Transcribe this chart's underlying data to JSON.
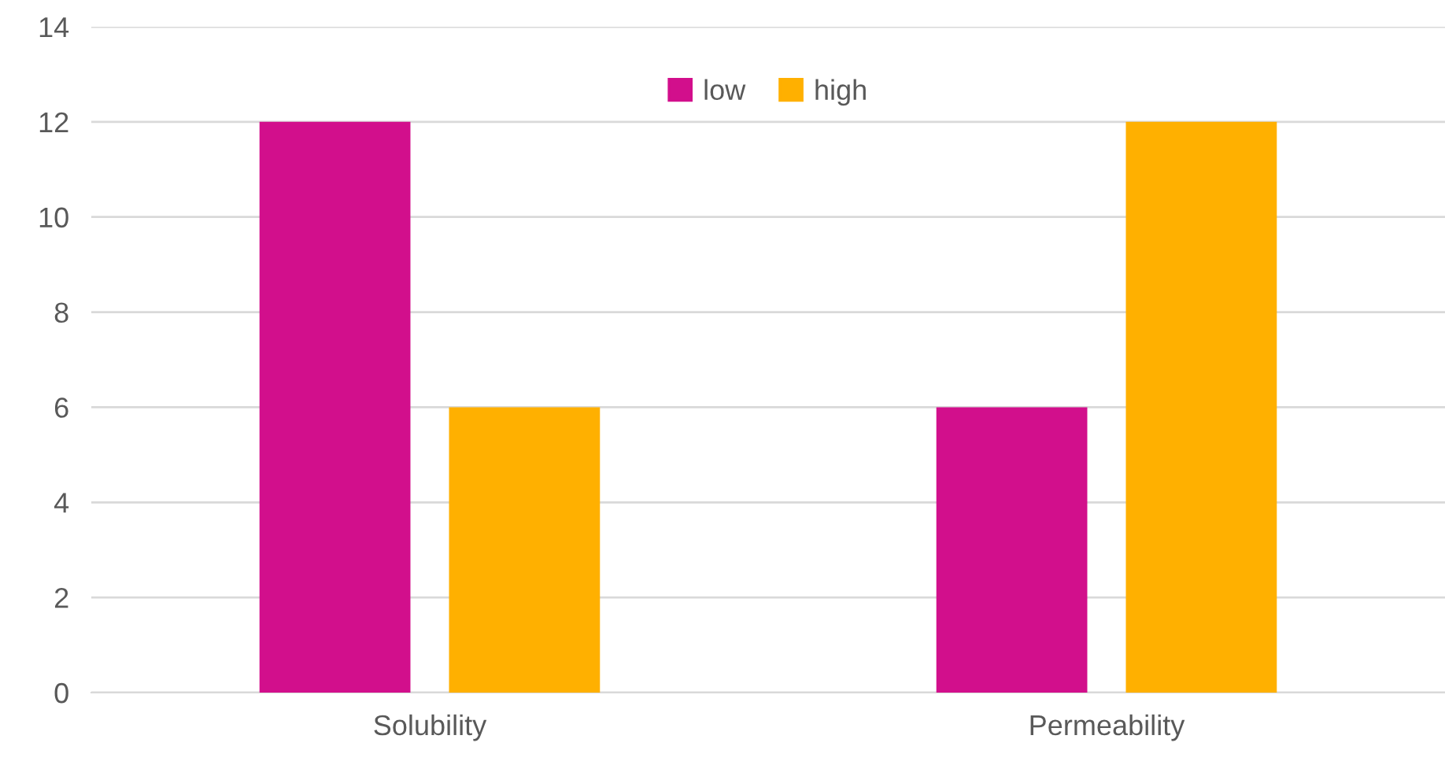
{
  "chart_data": {
    "type": "bar",
    "categories": [
      "Solubility",
      "Permeability"
    ],
    "series": [
      {
        "name": "low",
        "color": "#d20f8c",
        "values": [
          12,
          6
        ]
      },
      {
        "name": "high",
        "color": "#ffb000",
        "values": [
          6,
          12
        ]
      }
    ],
    "ylim": [
      0,
      14
    ],
    "yticks": [
      0,
      2,
      4,
      6,
      8,
      10,
      12,
      14
    ],
    "grid": "y",
    "legend": "top"
  }
}
